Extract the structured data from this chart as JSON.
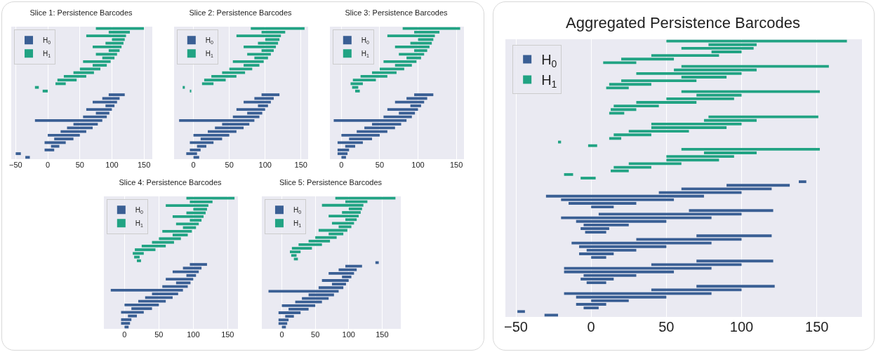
{
  "chart_data": [
    {
      "type": "bar",
      "orientation": "horizontal",
      "title": "Slice 1: Persistence Barcodes",
      "categories": [
        null,
        null,
        null,
        null,
        null,
        null,
        null,
        null,
        null,
        null,
        null,
        null,
        null,
        null,
        null,
        null,
        null,
        null,
        null,
        null,
        null,
        null,
        null,
        null,
        null,
        null,
        null,
        null,
        null,
        null,
        null,
        null,
        null,
        null,
        null,
        null
      ],
      "xlim": [
        -57,
        163
      ],
      "xticks": [
        -50,
        0,
        50,
        100,
        150
      ],
      "grid": "x",
      "legend": "top left",
      "tick_labels": "x",
      "series": [
        {
          "name": "H$_{0}$",
          "color": "#3a5f94",
          "base": [
            null,
            null,
            null,
            null,
            null,
            null,
            null,
            null,
            null,
            null,
            null,
            null,
            null,
            null,
            null,
            null,
            null,
            null,
            95,
            85,
            70,
            90,
            60,
            75,
            55,
            -20,
            40,
            30,
            20,
            0,
            10,
            -5,
            5,
            -5,
            -50,
            -35
          ],
          "values": [
            null,
            null,
            null,
            null,
            null,
            null,
            null,
            null,
            null,
            null,
            null,
            null,
            null,
            null,
            null,
            null,
            null,
            null,
            25,
            27,
            38,
            14,
            40,
            21,
            37,
            105,
            38,
            40,
            40,
            50,
            30,
            33,
            13,
            15,
            8,
            7
          ]
        },
        {
          "name": "H$_{1}$",
          "color": "#21a383",
          "base": [
            75,
            95,
            60,
            100,
            90,
            70,
            95,
            75,
            85,
            55,
            70,
            50,
            40,
            25,
            15,
            12,
            -20,
            -8,
            null,
            null,
            null,
            null,
            null,
            null,
            null,
            null,
            null,
            null,
            null,
            null,
            null,
            null,
            null,
            null,
            null,
            null
          ],
          "values": [
            75,
            33,
            62,
            20,
            28,
            45,
            17,
            33,
            19,
            43,
            22,
            32,
            32,
            35,
            30,
            16,
            6,
            8,
            null,
            null,
            null,
            null,
            null,
            null,
            null,
            null,
            null,
            null,
            null,
            null,
            null,
            null,
            null,
            null,
            null,
            null
          ]
        }
      ]
    },
    {
      "type": "bar",
      "orientation": "horizontal",
      "title": "Slice 2: Persistence Barcodes",
      "categories": [
        null,
        null,
        null,
        null,
        null,
        null,
        null,
        null,
        null,
        null,
        null,
        null,
        null,
        null,
        null,
        null,
        null,
        null,
        null,
        null,
        null,
        null,
        null,
        null,
        null,
        null,
        null,
        null,
        null,
        null,
        null,
        null,
        null,
        null,
        null,
        null
      ],
      "xlim": [
        -27,
        160
      ],
      "xticks": [
        0,
        50,
        100,
        150
      ],
      "grid": "x",
      "legend": "top left",
      "tick_labels": "x",
      "series": [
        {
          "name": "H$_{0}$",
          "color": "#3a5f94",
          "base": [
            null,
            null,
            null,
            null,
            null,
            null,
            null,
            null,
            null,
            null,
            null,
            null,
            null,
            null,
            null,
            null,
            null,
            null,
            95,
            85,
            70,
            90,
            60,
            75,
            55,
            -20,
            40,
            30,
            20,
            0,
            10,
            -5,
            5,
            -5,
            -10,
            0
          ],
          "values": [
            null,
            null,
            null,
            null,
            null,
            null,
            null,
            null,
            null,
            null,
            null,
            null,
            null,
            null,
            null,
            null,
            null,
            null,
            25,
            27,
            38,
            14,
            40,
            21,
            37,
            105,
            38,
            40,
            40,
            50,
            30,
            33,
            13,
            15,
            15,
            8
          ]
        },
        {
          "name": "H$_{1}$",
          "color": "#21a383",
          "base": [
            80,
            95,
            60,
            100,
            90,
            70,
            95,
            75,
            85,
            55,
            70,
            50,
            40,
            25,
            15,
            12,
            -15,
            -5,
            null,
            null,
            null,
            null,
            null,
            null,
            null,
            null,
            null,
            null,
            null,
            null,
            null,
            null,
            null,
            null,
            null,
            null
          ],
          "values": [
            75,
            33,
            62,
            20,
            28,
            45,
            17,
            33,
            19,
            43,
            22,
            32,
            32,
            35,
            30,
            16,
            3,
            2,
            null,
            null,
            null,
            null,
            null,
            null,
            null,
            null,
            null,
            null,
            null,
            null,
            null,
            null,
            null,
            null,
            null,
            null
          ]
        }
      ]
    },
    {
      "type": "bar",
      "orientation": "horizontal",
      "title": "Slice 3: Persistence Barcodes",
      "categories": [
        null,
        null,
        null,
        null,
        null,
        null,
        null,
        null,
        null,
        null,
        null,
        null,
        null,
        null,
        null,
        null,
        null,
        null,
        null,
        null,
        null,
        null,
        null,
        null,
        null,
        null,
        null,
        null,
        null,
        null,
        null,
        null,
        null,
        null,
        null,
        null
      ],
      "xlim": [
        -15,
        160
      ],
      "xticks": [
        0,
        50,
        100,
        150
      ],
      "grid": "x",
      "legend": "top left",
      "tick_labels": "x",
      "series": [
        {
          "name": "H$_{0}$",
          "color": "#3a5f94",
          "base": [
            null,
            null,
            null,
            null,
            null,
            null,
            null,
            null,
            null,
            null,
            null,
            null,
            null,
            null,
            null,
            null,
            null,
            null,
            95,
            85,
            70,
            90,
            60,
            75,
            55,
            -10,
            40,
            30,
            20,
            0,
            10,
            -5,
            5,
            -5,
            -5,
            0
          ],
          "values": [
            null,
            null,
            null,
            null,
            null,
            null,
            null,
            null,
            null,
            null,
            null,
            null,
            null,
            null,
            null,
            null,
            null,
            null,
            25,
            27,
            38,
            14,
            40,
            21,
            37,
            95,
            38,
            40,
            40,
            50,
            30,
            33,
            13,
            15,
            13,
            6
          ]
        },
        {
          "name": "H$_{1}$",
          "color": "#21a383",
          "base": [
            80,
            95,
            60,
            100,
            90,
            70,
            95,
            75,
            85,
            55,
            70,
            50,
            40,
            25,
            15,
            12,
            14,
            18,
            null,
            null,
            null,
            null,
            null,
            null,
            null,
            null,
            null,
            null,
            null,
            null,
            null,
            null,
            null,
            null,
            null,
            null
          ],
          "values": [
            75,
            33,
            62,
            20,
            28,
            45,
            17,
            33,
            19,
            43,
            22,
            32,
            32,
            35,
            30,
            16,
            8,
            6,
            null,
            null,
            null,
            null,
            null,
            null,
            null,
            null,
            null,
            null,
            null,
            null,
            null,
            null,
            null,
            null,
            null,
            null
          ]
        }
      ]
    },
    {
      "type": "bar",
      "orientation": "horizontal",
      "title": "Slice 4: Persistence Barcodes",
      "categories": [
        null,
        null,
        null,
        null,
        null,
        null,
        null,
        null,
        null,
        null,
        null,
        null,
        null,
        null,
        null,
        null,
        null,
        null,
        null,
        null,
        null,
        null,
        null,
        null,
        null,
        null,
        null,
        null,
        null,
        null,
        null,
        null,
        null,
        null,
        null,
        null
      ],
      "xlim": [
        -30,
        165
      ],
      "xticks": [
        0,
        50,
        100,
        150
      ],
      "grid": "x",
      "legend": "top left",
      "tick_labels": "x",
      "series": [
        {
          "name": "H$_{0}$",
          "color": "#3a5f94",
          "base": [
            null,
            null,
            null,
            null,
            null,
            null,
            null,
            null,
            null,
            null,
            null,
            null,
            null,
            null,
            null,
            null,
            null,
            null,
            95,
            85,
            70,
            90,
            60,
            75,
            55,
            -20,
            40,
            30,
            20,
            0,
            10,
            -5,
            5,
            -5,
            -5,
            0
          ],
          "values": [
            null,
            null,
            null,
            null,
            null,
            null,
            null,
            null,
            null,
            null,
            null,
            null,
            null,
            null,
            null,
            null,
            null,
            null,
            25,
            27,
            38,
            14,
            40,
            21,
            37,
            105,
            38,
            40,
            40,
            50,
            30,
            33,
            13,
            15,
            13,
            6
          ]
        },
        {
          "name": "H$_{1}$",
          "color": "#21a383",
          "base": [
            90,
            95,
            60,
            100,
            90,
            70,
            95,
            75,
            85,
            55,
            70,
            50,
            40,
            25,
            15,
            12,
            14,
            18,
            null,
            null,
            null,
            null,
            null,
            null,
            null,
            null,
            null,
            null,
            null,
            null,
            null,
            null,
            null,
            null,
            null,
            null
          ],
          "values": [
            70,
            33,
            62,
            20,
            28,
            45,
            17,
            33,
            19,
            43,
            22,
            32,
            32,
            35,
            30,
            16,
            8,
            6,
            null,
            null,
            null,
            null,
            null,
            null,
            null,
            null,
            null,
            null,
            null,
            null,
            null,
            null,
            null,
            null,
            null,
            null
          ]
        }
      ]
    },
    {
      "type": "bar",
      "orientation": "horizontal",
      "title": "Slice 5: Persistence Barcodes",
      "categories": [
        null,
        null,
        null,
        null,
        null,
        null,
        null,
        null,
        null,
        null,
        null,
        null,
        null,
        null,
        null,
        null,
        null,
        null,
        null,
        null,
        null,
        null,
        null,
        null,
        null,
        null,
        null,
        null,
        null,
        null,
        null,
        null,
        null,
        null,
        null,
        null,
        null
      ],
      "xlim": [
        -30,
        178
      ],
      "xticks": [
        0,
        50,
        100,
        150
      ],
      "grid": "x",
      "legend": "top left",
      "tick_labels": "x",
      "series": [
        {
          "name": "H$_{0}$",
          "color": "#3a5f94",
          "base": [
            null,
            null,
            null,
            null,
            null,
            null,
            null,
            null,
            null,
            null,
            null,
            null,
            null,
            null,
            null,
            null,
            null,
            null,
            140,
            95,
            85,
            70,
            90,
            60,
            75,
            55,
            -20,
            40,
            30,
            20,
            0,
            10,
            -5,
            5,
            -5,
            -5,
            0
          ],
          "values": [
            null,
            null,
            null,
            null,
            null,
            null,
            null,
            null,
            null,
            null,
            null,
            null,
            null,
            null,
            null,
            null,
            null,
            null,
            5,
            25,
            27,
            38,
            14,
            40,
            21,
            37,
            105,
            38,
            40,
            40,
            50,
            30,
            33,
            13,
            15,
            13,
            6
          ]
        },
        {
          "name": "H$_{1}$",
          "color": "#21a383",
          "base": [
            80,
            95,
            60,
            100,
            90,
            70,
            95,
            75,
            85,
            55,
            70,
            50,
            40,
            25,
            15,
            12,
            14,
            18,
            null,
            null,
            null,
            null,
            null,
            null,
            null,
            null,
            null,
            null,
            null,
            null,
            null,
            null,
            null,
            null,
            null,
            null,
            null
          ],
          "values": [
            90,
            33,
            62,
            20,
            28,
            45,
            17,
            33,
            19,
            43,
            22,
            32,
            32,
            35,
            30,
            16,
            8,
            6,
            null,
            null,
            null,
            null,
            null,
            null,
            null,
            null,
            null,
            null,
            null,
            null,
            null,
            null,
            null,
            null,
            null,
            null,
            null
          ]
        }
      ]
    },
    {
      "type": "bar",
      "orientation": "horizontal",
      "title": "Aggregated Persistence Barcodes",
      "categories": [
        null,
        null,
        null,
        null,
        null,
        null,
        null,
        null,
        null,
        null,
        null,
        null,
        null,
        null,
        null,
        null,
        null,
        null,
        null,
        null,
        null,
        null,
        null,
        null,
        null,
        null,
        null,
        null,
        null,
        null,
        null,
        null,
        null,
        null,
        null,
        null,
        null,
        null,
        null,
        null,
        null,
        null,
        null,
        null,
        null,
        null,
        null,
        null,
        null,
        null,
        null,
        null,
        null,
        null,
        null,
        null,
        null,
        null,
        null,
        null,
        null,
        null,
        null,
        null,
        null,
        null,
        null,
        null,
        null,
        null,
        null,
        null,
        null,
        null,
        null,
        null,
        null
      ],
      "xlim": [
        -57,
        180
      ],
      "xticks": [
        -50,
        0,
        50,
        100,
        150
      ],
      "grid": "x",
      "legend": "top left",
      "tick_labels": "x",
      "series": [
        {
          "name": "H$_{0}$",
          "color": "#3a5f94",
          "base": [
            null,
            null,
            null,
            null,
            null,
            null,
            null,
            null,
            null,
            null,
            null,
            null,
            null,
            null,
            null,
            null,
            null,
            null,
            null,
            null,
            null,
            null,
            null,
            null,
            null,
            null,
            null,
            null,
            null,
            null,
            null,
            null,
            null,
            null,
            null,
            null,
            null,
            null,
            null,
            138,
            90,
            60,
            45,
            -30,
            -20,
            -15,
            0,
            65,
            5,
            -20,
            -10,
            -5,
            -7,
            -4,
            70,
            30,
            -13,
            -8,
            -3,
            -8,
            0,
            70,
            40,
            -18,
            -18,
            -5,
            -7,
            -3,
            70,
            40,
            -18,
            -10,
            0,
            -10,
            -5,
            -49,
            -31
          ],
          "values": [
            null,
            null,
            null,
            null,
            null,
            null,
            null,
            null,
            null,
            null,
            null,
            null,
            null,
            null,
            null,
            null,
            null,
            null,
            null,
            null,
            null,
            null,
            null,
            null,
            null,
            null,
            null,
            null,
            null,
            null,
            null,
            null,
            null,
            null,
            null,
            null,
            null,
            null,
            null,
            5,
            42,
            60,
            55,
            105,
            75,
            45,
            15,
            56,
            95,
            100,
            60,
            30,
            19,
            14,
            50,
            70,
            93,
            58,
            33,
            23,
            10,
            51,
            60,
            98,
            73,
            35,
            22,
            13,
            52,
            60,
            98,
            60,
            25,
            20,
            10,
            5,
            9
          ]
        },
        {
          "name": "H$_{1}$",
          "color": "#21a383",
          "base": [
            50,
            78,
            60,
            80,
            40,
            20,
            8,
            60,
            55,
            30,
            60,
            20,
            12,
            10,
            60,
            70,
            50,
            30,
            15,
            13,
            12,
            78,
            75,
            40,
            40,
            25,
            15,
            12,
            -22,
            -2,
            60,
            75,
            50,
            50,
            25,
            15,
            13,
            -18,
            -7,
            null,
            null,
            null,
            null,
            null,
            null,
            null,
            null,
            null,
            null,
            null,
            null,
            null,
            null,
            null,
            null,
            null,
            null,
            null,
            null,
            null,
            null,
            null,
            null,
            null,
            null,
            null,
            null,
            null,
            null,
            null,
            null,
            null,
            null,
            null,
            null,
            null,
            null
          ],
          "values": [
            120,
            32,
            48,
            20,
            45,
            35,
            22,
            98,
            55,
            70,
            30,
            50,
            28,
            15,
            92,
            30,
            45,
            40,
            30,
            17,
            10,
            73,
            35,
            60,
            50,
            40,
            25,
            8,
            2,
            6,
            92,
            35,
            45,
            35,
            35,
            25,
            12,
            6,
            10,
            null,
            null,
            null,
            null,
            null,
            null,
            null,
            null,
            null,
            null,
            null,
            null,
            null,
            null,
            null,
            null,
            null,
            null,
            null,
            null,
            null,
            null,
            null,
            null,
            null,
            null,
            null,
            null,
            null,
            null,
            null,
            null,
            null,
            null,
            null,
            null,
            null,
            null
          ]
        }
      ]
    }
  ]
}
